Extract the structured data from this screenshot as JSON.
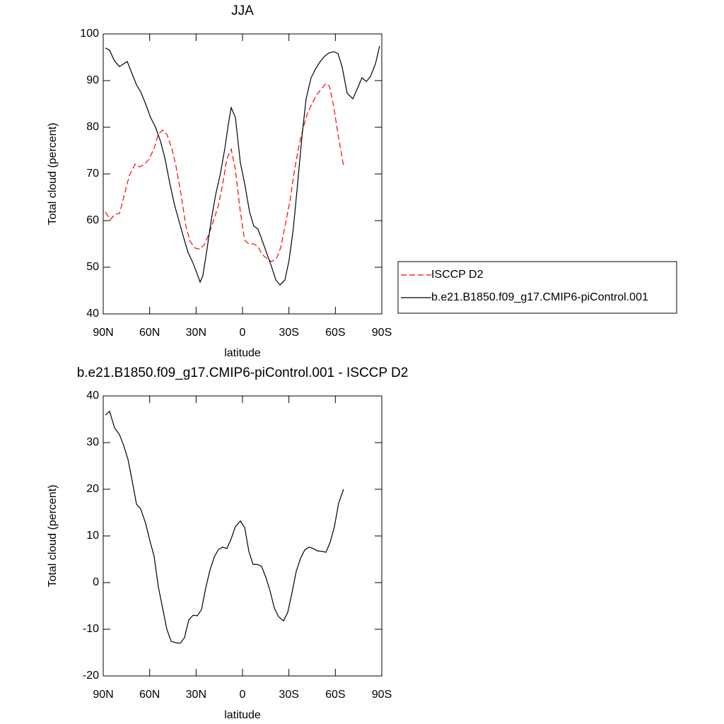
{
  "chart_data": [
    {
      "type": "line",
      "title": "JJA",
      "xlabel": "latitude",
      "ylabel": "Total cloud (percent)",
      "xlim": [
        90,
        -90
      ],
      "xticks": [
        {
          "value": 90,
          "label": "90N"
        },
        {
          "value": 60,
          "label": "60N"
        },
        {
          "value": 30,
          "label": "30N"
        },
        0,
        {
          "value": -30,
          "label": "30S"
        },
        {
          "value": -60,
          "label": "60S"
        },
        {
          "value": -90,
          "label": "90S"
        }
      ],
      "ylim": [
        40,
        100
      ],
      "yticks": [
        40,
        50,
        60,
        70,
        80,
        90,
        100
      ],
      "legend": "right",
      "series": [
        {
          "name": "ISCCP D2",
          "color": "#ff0000",
          "dashed": true,
          "x": [
            88.6,
            85.4,
            82.2,
            79.5,
            76.3,
            73.1,
            69.4,
            66.7,
            63.5,
            60.3,
            57.1,
            54.4,
            51.6,
            48.9,
            45.7,
            43.0,
            39.7,
            36.6,
            33.8,
            30.6,
            27.9,
            24.7,
            21.5,
            18.7,
            15.5,
            12.8,
            10.1,
            7.3,
            4.6,
            1.4,
            -1.4,
            -4.1,
            -7.3,
            -10.0,
            -12.8,
            -16.0,
            -18.7,
            -21.9,
            -24.7,
            -27.4,
            -30.6,
            -33.3,
            -36.1,
            -39.3,
            -42.0,
            -45.2,
            -48.0,
            -51.2,
            -53.9,
            -56.2,
            -58.9,
            -61.7,
            -65.3
          ],
          "values": [
            61.8,
            60.2,
            61.4,
            61.5,
            65.6,
            69.7,
            72.1,
            71.5,
            72.0,
            73.2,
            75.5,
            78.5,
            79.4,
            78.5,
            75.5,
            71.7,
            65.6,
            58.8,
            55.5,
            54.1,
            53.9,
            54.8,
            57.3,
            60.0,
            63.3,
            67.9,
            73.2,
            75.3,
            70.9,
            61.8,
            55.8,
            55.0,
            55.0,
            54.4,
            52.7,
            51.8,
            51.2,
            51.8,
            54.2,
            58.8,
            64.1,
            70.2,
            75.5,
            80.0,
            83.0,
            85.3,
            87.0,
            88.3,
            89.4,
            88.8,
            84.5,
            78.5,
            71.7
          ]
        },
        {
          "name": "b.e21.B1850.f09_g17.CMIP6-piControl.001",
          "color": "#000000",
          "dashed": false,
          "x": [
            88.6,
            85.9,
            82.7,
            79.5,
            74.5,
            68.5,
            65.8,
            62.6,
            59.4,
            56.2,
            53.0,
            50.3,
            47.1,
            43.9,
            41.1,
            37.9,
            35.2,
            32.0,
            29.2,
            27.4,
            25.6,
            22.8,
            20.1,
            17.4,
            14.2,
            11.4,
            9.1,
            7.3,
            4.6,
            1.4,
            -1.4,
            -4.6,
            -7.3,
            -10.0,
            -13.2,
            -16.0,
            -18.7,
            -21.5,
            -24.2,
            -27.4,
            -30.1,
            -32.9,
            -35.6,
            -38.4,
            -41.1,
            -44.3,
            -47.0,
            -49.8,
            -53.0,
            -55.7,
            -58.9,
            -61.7,
            -64.4,
            -67.6,
            -71.3,
            -74.5,
            -77.2,
            -80.0,
            -82.7,
            -85.9,
            -88.6
          ],
          "values": [
            97.0,
            96.5,
            94.2,
            93.0,
            94.1,
            89.1,
            87.6,
            85.0,
            82.1,
            80.0,
            77.0,
            73.6,
            68.2,
            63.3,
            60.0,
            56.2,
            53.2,
            50.9,
            48.5,
            46.8,
            48.2,
            54.2,
            60.3,
            65.5,
            70.2,
            75.5,
            80.8,
            84.2,
            82.1,
            72.4,
            67.9,
            61.8,
            58.8,
            58.2,
            55.3,
            52.7,
            50.2,
            47.3,
            46.2,
            47.3,
            51.5,
            58.5,
            67.9,
            78.0,
            86.1,
            90.6,
            92.4,
            93.9,
            95.2,
            95.9,
            96.2,
            95.8,
            92.9,
            87.3,
            86.1,
            88.5,
            90.6,
            89.8,
            90.9,
            93.6,
            97.4
          ]
        }
      ]
    },
    {
      "type": "line",
      "title": "b.e21.B1850.f09_g17.CMIP6-piControl.001 - ISCCP D2",
      "xlabel": "latitude",
      "ylabel": "Total cloud (percent)",
      "xlim": [
        90,
        -90
      ],
      "xticks": [
        {
          "value": 90,
          "label": "90N"
        },
        {
          "value": 60,
          "label": "60N"
        },
        {
          "value": 30,
          "label": "30N"
        },
        0,
        {
          "value": -30,
          "label": "30S"
        },
        {
          "value": -60,
          "label": "60S"
        },
        {
          "value": -90,
          "label": "90S"
        }
      ],
      "ylim": [
        -20,
        40
      ],
      "yticks": [
        -20,
        -10,
        0,
        10,
        20,
        30,
        40
      ],
      "series": [
        {
          "color": "#000000",
          "dashed": false,
          "x": [
            88.6,
            85.9,
            82.7,
            79.5,
            76.8,
            74.0,
            71.3,
            68.5,
            65.8,
            62.6,
            59.8,
            57.1,
            54.4,
            51.6,
            48.9,
            46.1,
            43.0,
            40.2,
            37.5,
            34.7,
            32.0,
            29.2,
            26.5,
            23.8,
            21.0,
            18.3,
            15.5,
            12.8,
            10.1,
            7.3,
            4.6,
            1.4,
            -1.4,
            -4.1,
            -6.8,
            -9.6,
            -12.3,
            -15.1,
            -17.8,
            -20.6,
            -23.3,
            -26.5,
            -29.2,
            -32.0,
            -34.7,
            -37.5,
            -40.2,
            -43.0,
            -45.7,
            -48.4,
            -51.2,
            -53.9,
            -56.6,
            -59.4,
            -62.1,
            -65.3
          ],
          "values": [
            35.9,
            36.7,
            33.2,
            31.7,
            29.4,
            26.4,
            21.8,
            16.8,
            15.8,
            12.7,
            8.9,
            5.6,
            -0.9,
            -5.5,
            -10.0,
            -12.6,
            -12.9,
            -13.0,
            -11.8,
            -8.0,
            -7.0,
            -7.1,
            -5.8,
            -1.2,
            2.7,
            5.5,
            7.1,
            7.6,
            7.3,
            9.4,
            12.0,
            13.2,
            11.8,
            6.7,
            3.9,
            3.9,
            3.5,
            1.1,
            -1.8,
            -5.5,
            -7.3,
            -8.2,
            -6.4,
            -2.1,
            2.4,
            5.2,
            7.0,
            7.6,
            7.3,
            6.8,
            6.7,
            6.5,
            8.6,
            12.0,
            17.0,
            20.0
          ]
        }
      ]
    }
  ]
}
